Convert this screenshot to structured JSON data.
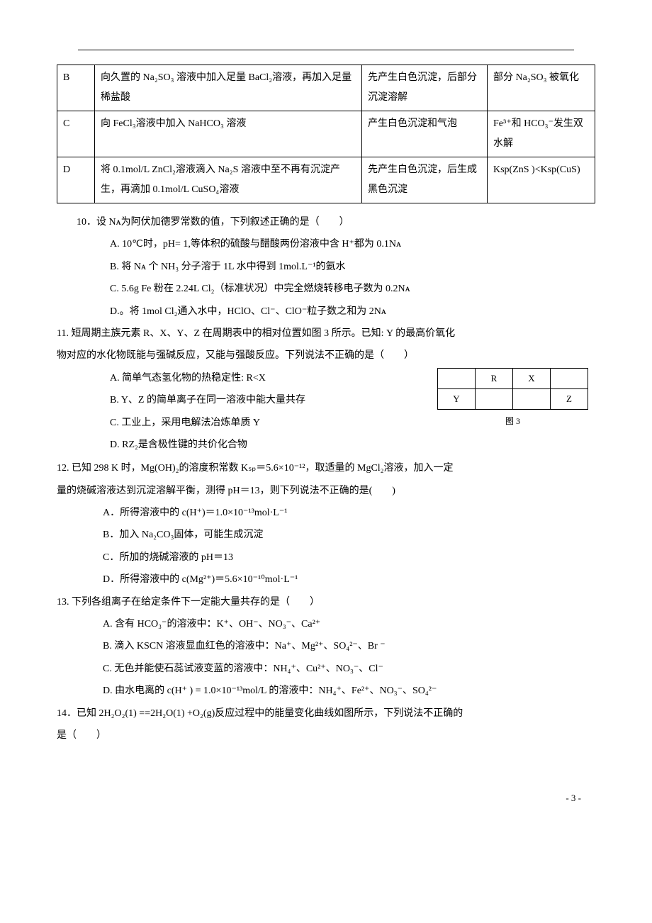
{
  "table": {
    "rows": [
      {
        "label": "B",
        "op": "向久置的 Na₂SO₃ 溶液中加入足量 BaCl₂溶液，再加入足量稀盐酸",
        "obs": "先产生白色沉淀，后部分沉淀溶解",
        "concl": "部分 Na₂SO₃ 被氧化"
      },
      {
        "label": "C",
        "op": "向 FeCl₃溶液中加入 NaHCO₃ 溶液",
        "obs": "产生白色沉淀和气泡",
        "concl": "Fe³⁺和 HCO₃⁻发生双水解"
      },
      {
        "label": "D",
        "op": "将 0.1mol/L ZnCl₂溶液滴入 Na₂S 溶液中至不再有沉淀产生，再滴加 0.1mol/L CuSO₄溶液",
        "obs": "先产生白色沉淀，后生成黑色沉淀",
        "concl": "Ksp(ZnS )<Ksp(CuS)"
      }
    ]
  },
  "q10": {
    "stem": "10．设 Nᴀ为阿伏加德罗常数的值，下列叙述正确的是（　　）",
    "A": "A. 10℃时，pH= 1,等体积的硫酸与醋酸两份溶液中含 H⁺都为 0.1Nᴀ",
    "B": "B. 将 Nᴀ 个 NH₃ 分子溶于 1L 水中得到 1mol.L⁻¹的氨水",
    "C": "C. 5.6g Fe 粉在 2.24L Cl₂（标准状况）中完全燃烧转移电子数为 0.2Nᴀ",
    "D": "D.。将 1mol Cl₂通入水中，HClO、Cl⁻、ClO⁻粒子数之和为 2Nᴀ"
  },
  "q11": {
    "stem1": "11. 短周期主族元素 R、X、Y、Z 在周期表中的相对位置如图 3 所示。已知: Y 的最高价氧化",
    "stem2": "物对应的水化物既能与强碱反应，又能与强酸反应。下列说法不正确的是（　　）",
    "A": "A. 简单气态氢化物的热稳定性: R<X",
    "B": "B. Y、Z 的简单离子在同一溶液中能大量共存",
    "C": "C. 工业上，采用电解法冶炼单质 Y",
    "D": "D. RZ₂是含极性键的共价化合物",
    "fig": {
      "R": "R",
      "X": "X",
      "Y": "Y",
      "Z": "Z",
      "caption": "图 3"
    }
  },
  "q12": {
    "stem1": "12. 已知 298 K 时，Mg(OH)₂的溶度积常数 Kₛₚ＝5.6×10⁻¹²，取适量的 MgCl₂溶液，加入一定",
    "stem2": "量的烧碱溶液达到沉淀溶解平衡，测得 pH＝13，则下列说法不正确的是(　　)",
    "A": "A．所得溶液中的 c(H⁺)＝1.0×10⁻¹³mol·L⁻¹",
    "B": "B．加入 Na₂CO₃固体，可能生成沉淀",
    "C": "C．所加的烧碱溶液的 pH＝13",
    "D": "D．所得溶液中的 c(Mg²⁺)＝5.6×10⁻¹⁰mol·L⁻¹"
  },
  "q13": {
    "stem": "13. 下列各组离子在给定条件下一定能大量共存的是（　　）",
    "A": "A. 含有 HCO₃⁻的溶液中：K⁺、OH⁻、NO₃⁻、Ca²⁺",
    "B": "B. 滴入 KSCN 溶液显血红色的溶液中：Na⁺、Mg²⁺、SO₄²⁻、Br ⁻",
    "C": "C. 无色并能使石蕊试液变蓝的溶液中：NH₄⁺、Cu²⁺、NO₃⁻、Cl⁻",
    "D": "D. 由水电离的 c(H⁺ ) = 1.0×10⁻¹³mol/L 的溶液中：NH₄⁺、Fe²⁺、NO₃⁻、SO₄²⁻"
  },
  "q14": {
    "stem1": "14．已知 2H₂O₂(1) ==2H₂O(1) +O₂(g)反应过程中的能量变化曲线如图所示，下列说法不正确的",
    "stem2": "是（　　）"
  },
  "pagenum": "- 3 -"
}
